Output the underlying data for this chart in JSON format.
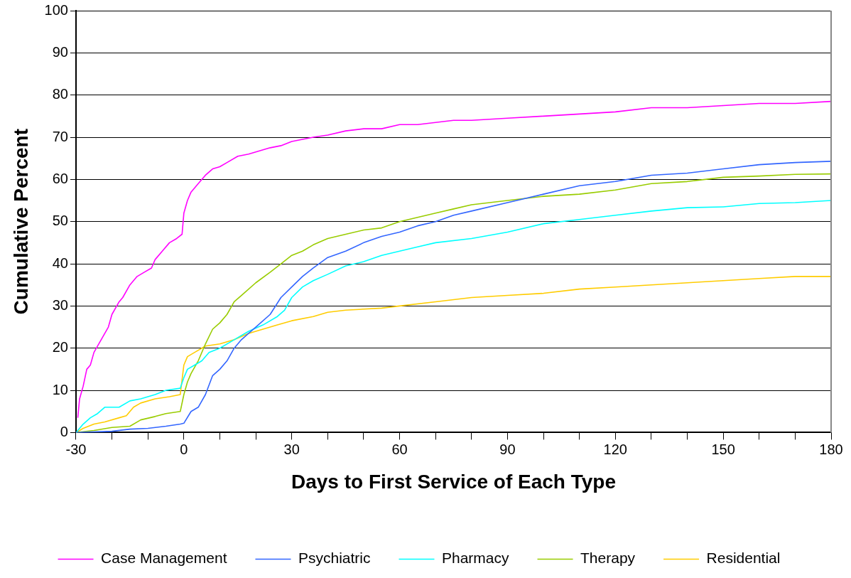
{
  "chart_data": {
    "type": "line",
    "xlabel": "Days to First Service of Each Type",
    "ylabel": "Cumulative Percent",
    "xlim": [
      -30,
      180
    ],
    "xticks": [
      -30,
      {
        "value": -20,
        "label": null
      },
      {
        "value": -10,
        "label": null
      },
      0,
      {
        "value": 10,
        "label": null
      },
      {
        "value": 20,
        "label": null
      },
      30,
      {
        "value": 40,
        "label": null
      },
      {
        "value": 50,
        "label": null
      },
      60,
      {
        "value": 70,
        "label": null
      },
      {
        "value": 80,
        "label": null
      },
      90,
      {
        "value": 100,
        "label": null
      },
      {
        "value": 110,
        "label": null
      },
      120,
      {
        "value": 130,
        "label": null
      },
      {
        "value": 140,
        "label": null
      },
      150,
      {
        "value": 160,
        "label": null
      },
      {
        "value": 170,
        "label": null
      },
      180
    ],
    "ylim": [
      0,
      100
    ],
    "yticks": [
      0,
      10,
      20,
      30,
      40,
      50,
      60,
      70,
      80,
      90,
      100
    ],
    "grid": "y",
    "legend": "bottom",
    "marker": "none",
    "line_style": "solid",
    "series": [
      {
        "name": "Case Management",
        "color": "#ff00ff",
        "x": [
          -29.5,
          -29,
          -28,
          -27,
          -26,
          -25,
          -23,
          -21,
          -20,
          -18,
          -17,
          -15,
          -13,
          -11,
          -9,
          -8,
          -6,
          -4,
          -2,
          -0.5,
          0,
          1,
          2,
          4,
          6,
          8,
          10,
          12,
          15,
          18,
          20,
          24,
          27,
          30,
          33,
          36,
          40,
          45,
          50,
          55,
          60,
          65,
          70,
          75,
          80,
          90,
          100,
          110,
          120,
          130,
          140,
          150,
          160,
          170,
          180
        ],
        "values": [
          3.5,
          8,
          11,
          15,
          16,
          19,
          22,
          25,
          28,
          31,
          32,
          35,
          37,
          38,
          39,
          41,
          43,
          45,
          46,
          47,
          52,
          55,
          57,
          59,
          61,
          62.5,
          63,
          64,
          65.5,
          66,
          66.5,
          67.5,
          68,
          69,
          69.5,
          70,
          70.5,
          71.5,
          72,
          72,
          73,
          73,
          73.5,
          74,
          74,
          74.5,
          75,
          75.5,
          76,
          77,
          77,
          77.5,
          78,
          78,
          78.5
        ]
      },
      {
        "name": "Psychiatric",
        "color": "#3366ff",
        "x": [
          -30,
          -20,
          -15,
          -10,
          -5,
          -1,
          0,
          2,
          4,
          6,
          8,
          10,
          12,
          14,
          16,
          18,
          20,
          24,
          27,
          30,
          33,
          36,
          40,
          45,
          50,
          55,
          60,
          65,
          70,
          75,
          80,
          90,
          100,
          110,
          120,
          130,
          140,
          150,
          160,
          170,
          180
        ],
        "values": [
          0,
          0.3,
          0.8,
          1,
          1.5,
          2,
          2.2,
          5,
          6,
          9,
          13.5,
          15,
          17,
          20,
          22,
          23.5,
          25,
          28,
          32,
          34.5,
          37,
          39,
          41.5,
          43,
          45,
          46.5,
          47.5,
          49,
          50,
          51.5,
          52.5,
          54.5,
          56.5,
          58.5,
          59.5,
          61,
          61.5,
          62.5,
          63.5,
          64,
          64.3
        ]
      },
      {
        "name": "Pharmacy",
        "color": "#00ffff",
        "x": [
          -30,
          -28,
          -26,
          -24,
          -22,
          -18,
          -15,
          -12,
          -8,
          -5,
          -1,
          0,
          1,
          3,
          5,
          7,
          10,
          14,
          18,
          22,
          26,
          28,
          30,
          33,
          36,
          40,
          45,
          50,
          55,
          60,
          65,
          70,
          80,
          90,
          100,
          110,
          120,
          130,
          140,
          150,
          160,
          170,
          180
        ],
        "values": [
          0,
          2,
          3.5,
          4.5,
          6,
          6,
          7.5,
          8,
          9,
          10,
          10.5,
          13,
          15,
          16,
          17,
          19,
          20,
          22,
          24,
          25.5,
          27.5,
          29,
          32,
          34.5,
          36,
          37.5,
          39.5,
          40.5,
          42,
          43,
          44,
          45,
          46,
          47.5,
          49.5,
          50.5,
          51.5,
          52.5,
          53.3,
          53.5,
          54.3,
          54.5,
          55
        ]
      },
      {
        "name": "Therapy",
        "color": "#99cc00",
        "x": [
          -30,
          -25,
          -20,
          -15,
          -12,
          -8,
          -5,
          -1,
          0,
          1,
          2,
          4,
          6,
          8,
          10,
          12,
          14,
          16,
          20,
          24,
          27,
          30,
          33,
          36,
          40,
          45,
          50,
          55,
          60,
          65,
          70,
          75,
          80,
          90,
          100,
          110,
          120,
          130,
          140,
          150,
          160,
          170,
          180
        ],
        "values": [
          0,
          0.5,
          1.2,
          1.5,
          3,
          3.8,
          4.5,
          5,
          9,
          12,
          14,
          17,
          21,
          24.5,
          26,
          28,
          31,
          32.5,
          35.5,
          38,
          40,
          42,
          43,
          44.5,
          46,
          47,
          48,
          48.5,
          50,
          51,
          52,
          53,
          54,
          55,
          56,
          56.5,
          57.5,
          59,
          59.5,
          60.5,
          60.8,
          61.2,
          61.3
        ]
      },
      {
        "name": "Residential",
        "color": "#ffcc00",
        "x": [
          -30,
          -28,
          -25,
          -22,
          -18,
          -16,
          -14,
          -12,
          -8,
          -4,
          -1,
          0,
          1,
          3,
          6,
          10,
          14,
          18,
          22,
          26,
          30,
          36,
          40,
          45,
          55,
          60,
          70,
          80,
          90,
          100,
          110,
          120,
          130,
          140,
          150,
          160,
          170,
          180
        ],
        "values": [
          0,
          1,
          2,
          2.5,
          3.5,
          4,
          6,
          7,
          8,
          8.5,
          9,
          16,
          18,
          19,
          20.5,
          21,
          22,
          23.5,
          24.5,
          25.5,
          26.5,
          27.5,
          28.5,
          29,
          29.5,
          30,
          31,
          32,
          32.5,
          33,
          34,
          34.5,
          35,
          35.5,
          36,
          36.5,
          37,
          37
        ]
      }
    ]
  }
}
